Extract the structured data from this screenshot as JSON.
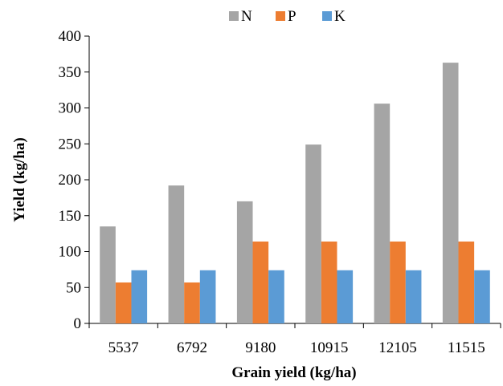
{
  "chart_data": {
    "type": "bar",
    "title": "",
    "xlabel": "Grain yield (kg/ha)",
    "ylabel": "Yield (kg/ha)",
    "categories": [
      "5537",
      "6792",
      "9180",
      "10915",
      "12105",
      "11515"
    ],
    "series": [
      {
        "name": "N",
        "color": "#a5a5a5",
        "values": [
          135,
          192,
          170,
          249,
          306,
          363
        ]
      },
      {
        "name": "P",
        "color": "#ed7d31",
        "values": [
          57,
          57,
          114,
          114,
          114,
          114
        ]
      },
      {
        "name": "K",
        "color": "#5b9bd5",
        "values": [
          74,
          74,
          74,
          74,
          74,
          74
        ]
      }
    ],
    "ylim": [
      0,
      400
    ],
    "yticks": [
      "0",
      "50",
      "100",
      "150",
      "200",
      "250",
      "300",
      "350",
      "400"
    ],
    "legend_position": "top-center",
    "grid": false
  }
}
